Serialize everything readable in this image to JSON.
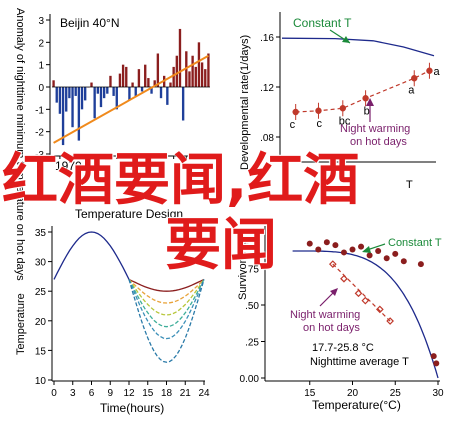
{
  "overlay": {
    "line1": "红酒要闻,红酒",
    "line2": "要闻"
  },
  "chart_data": [
    {
      "type": "bar",
      "title": "Beijin 40°N",
      "xlabel": "",
      "ylabel": "Anomaly of nighttime minimum temperature on hot days",
      "x_ticks": [
        1970
      ],
      "ylim": [
        -3,
        3
      ],
      "y_ticks": [
        -3,
        -2,
        -1,
        0,
        1,
        2,
        3
      ],
      "colors": {
        "positive": "#8b1e1e",
        "negative": "#1f3f9a",
        "trend": "#f08a1c"
      },
      "years": [
        1961,
        1962,
        1963,
        1964,
        1965,
        1966,
        1967,
        1968,
        1969,
        1970,
        1971,
        1972,
        1973,
        1974,
        1975,
        1976,
        1977,
        1978,
        1979,
        1980,
        1981,
        1982,
        1983,
        1984,
        1985,
        1986,
        1987,
        1988,
        1989,
        1990,
        1991,
        1992,
        1993,
        1994,
        1995,
        1996,
        1997,
        1998,
        1999,
        2000,
        2001,
        2002,
        2003,
        2004,
        2005,
        2006,
        2007,
        2008,
        2009,
        2010
      ],
      "values": [
        0.3,
        -0.7,
        -1.2,
        -2.6,
        -1.1,
        -0.5,
        -1.8,
        -0.4,
        -2.4,
        -1.0,
        -0.6,
        0.0,
        0.2,
        -1.4,
        -0.3,
        -0.9,
        -0.5,
        -0.3,
        0.5,
        -0.4,
        -1.0,
        0.6,
        1.0,
        0.9,
        -0.6,
        0.2,
        -0.4,
        0.8,
        -0.2,
        1.0,
        0.4,
        -0.3,
        0.3,
        1.5,
        -0.5,
        0.5,
        -0.8,
        0.2,
        0.9,
        1.4,
        2.6,
        -1.5,
        1.6,
        0.7,
        1.4,
        0.9,
        2.0,
        1.1,
        0.8,
        1.5
      ],
      "trend": [
        [
          1961,
          -2.5
        ],
        [
          2010,
          1.4
        ]
      ]
    },
    {
      "type": "line",
      "title": "",
      "xlabel": "T",
      "ylabel": "Developmental rate(1/days)",
      "ylim": [
        0.06,
        0.18
      ],
      "y_ticks": [
        0.08,
        0.12,
        0.16
      ],
      "y_tick_labels": [
        ".08",
        ".12",
        ".16"
      ],
      "series": [
        {
          "name": "Constant T",
          "color": "#1e2a8c",
          "points": [
            [
              0,
              0.159
            ],
            [
              0.35,
              0.1587
            ],
            [
              0.6,
              0.157
            ],
            [
              0.8,
              0.152
            ],
            [
              1,
              0.145
            ]
          ]
        },
        {
          "name": "Night warming on hot days",
          "color": "#c0392b",
          "points": [
            [
              0.09,
              0.1
            ],
            [
              0.24,
              0.101
            ],
            [
              0.4,
              0.103
            ],
            [
              0.55,
              0.111
            ],
            [
              0.87,
              0.127
            ],
            [
              0.97,
              0.133
            ]
          ],
          "labels": [
            "c",
            "c",
            "bc",
            "b",
            "a",
            "a"
          ]
        }
      ],
      "annotations": [
        "Constant T",
        "Night warming",
        "on hot days"
      ]
    },
    {
      "type": "line",
      "title": "Temperature Design",
      "xlabel": "Time(hours)",
      "ylabel": "Temperature",
      "ylim": [
        10,
        35
      ],
      "y_ticks": [
        10,
        15,
        20,
        25,
        30,
        35
      ],
      "x_ticks": [
        0,
        3,
        6,
        9,
        12,
        15,
        18,
        21,
        24
      ],
      "day_curve": [
        [
          0,
          27
        ],
        [
          6,
          35
        ],
        [
          12,
          27
        ]
      ],
      "night_minima": [
        {
          "min": 25,
          "color": "#8b1e1e"
        },
        {
          "min": 23,
          "color": "#e8a33a"
        },
        {
          "min": 21,
          "color": "#b7c63a"
        },
        {
          "min": 19,
          "color": "#3fae9a"
        },
        {
          "min": 17,
          "color": "#3b8fb8"
        },
        {
          "min": 13,
          "color": "#2a7aa8"
        }
      ]
    },
    {
      "type": "scatter",
      "title": "",
      "xlabel": "Temperature(°C)",
      "ylabel": "Survivorship",
      "xlim": [
        10,
        30
      ],
      "x_ticks": [
        15,
        20,
        25,
        30
      ],
      "ylim": [
        0,
        1
      ],
      "y_ticks": [
        0,
        0.25,
        0.5,
        0.75
      ],
      "y_tick_labels": [
        "0.00",
        ".25",
        ".50",
        ".75"
      ],
      "series": [
        {
          "name": "Constant T",
          "color": "#1e2a8c",
          "points": [
            [
              15,
              0.92
            ],
            [
              16,
              0.88
            ],
            [
              17,
              0.93
            ],
            [
              18,
              0.91
            ],
            [
              19,
              0.86
            ],
            [
              20,
              0.88
            ],
            [
              21,
              0.9
            ],
            [
              22,
              0.84
            ],
            [
              23,
              0.87
            ],
            [
              24,
              0.82
            ],
            [
              25,
              0.85
            ],
            [
              26,
              0.8
            ],
            [
              28,
              0.78
            ],
            [
              29.5,
              0.15
            ],
            [
              29.8,
              0.1
            ]
          ]
        },
        {
          "name": "Night warming on hot days",
          "color": "#c0392b",
          "points": [
            [
              17.7,
              0.78
            ],
            [
              19,
              0.68
            ],
            [
              20.7,
              0.58
            ],
            [
              21.5,
              0.53
            ],
            [
              23.2,
              0.47
            ],
            [
              24.4,
              0.39
            ]
          ]
        }
      ],
      "annotations": [
        "Constant T",
        "Night warming",
        "on hot days",
        "17.7-25.8 °C",
        "Nighttime average T"
      ]
    }
  ]
}
